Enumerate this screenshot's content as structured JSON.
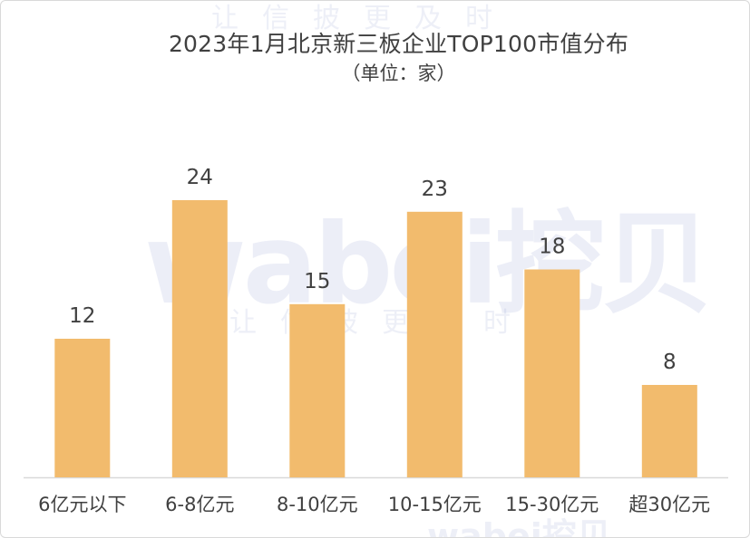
{
  "title": "2023年1月北京新三板企业TOP100市值分布",
  "subtitle": "（单位：家）",
  "watermark": {
    "brand": "wabei挖贝",
    "slogan": "让信披更及时"
  },
  "chart_data": {
    "type": "bar",
    "title": "2023年1月北京新三板企业TOP100市值分布",
    "subtitle": "（单位：家）",
    "categories": [
      "6亿元以下",
      "6-8亿元",
      "8-10亿元",
      "10-15亿元",
      "15-30亿元",
      "超30亿元"
    ],
    "values": [
      12,
      24,
      15,
      23,
      18,
      8
    ],
    "xlabel": "",
    "ylabel": "",
    "ylim": [
      0,
      24
    ],
    "grid": false,
    "legend": "none",
    "show_data_labels": true,
    "bar_color": "#F2BB6D",
    "axis_color": "#D9D9D9",
    "text_color": "#404040"
  }
}
